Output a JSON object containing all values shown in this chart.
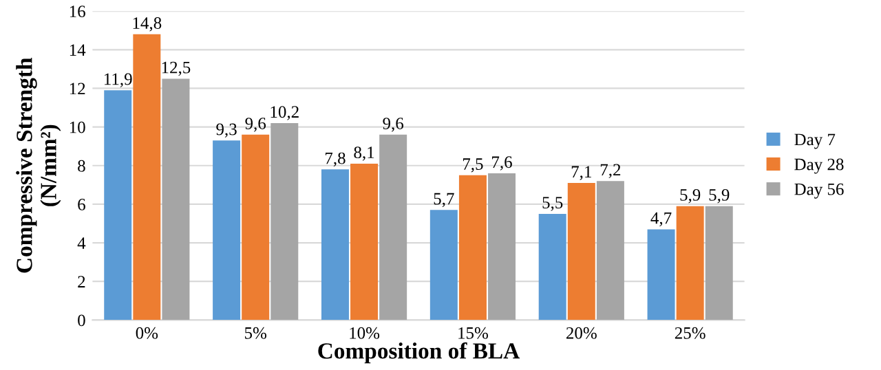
{
  "chart_data": {
    "type": "bar",
    "xlabel": "Composition of BLA",
    "ylabel": "Compressive Strength\n(N/mm²)",
    "categories": [
      "0%",
      "5%",
      "10%",
      "15%",
      "20%",
      "25%"
    ],
    "series": [
      {
        "name": "Day 7",
        "color": "#5b9bd5",
        "values": [
          11.9,
          9.3,
          7.8,
          5.7,
          5.5,
          4.7
        ],
        "value_labels": [
          "11,9",
          "9,3",
          "7,8",
          "5,7",
          "5,5",
          "4,7"
        ]
      },
      {
        "name": "Day 28",
        "color": "#ed7d31",
        "values": [
          14.8,
          9.6,
          8.1,
          7.5,
          7.1,
          5.9
        ],
        "value_labels": [
          "14,8",
          "9,6",
          "8,1",
          "7,5",
          "7,1",
          "5,9"
        ]
      },
      {
        "name": "Day 56",
        "color": "#a5a5a5",
        "values": [
          12.5,
          10.2,
          9.6,
          7.6,
          7.2,
          5.9
        ],
        "value_labels": [
          "12,5",
          "10,2",
          "9,6",
          "7,6",
          "7,2",
          "5,9"
        ]
      }
    ],
    "ylim": [
      0,
      16
    ],
    "yticks": [
      0,
      2,
      4,
      6,
      8,
      10,
      12,
      14,
      16
    ],
    "grid": "y",
    "legend": "right"
  }
}
